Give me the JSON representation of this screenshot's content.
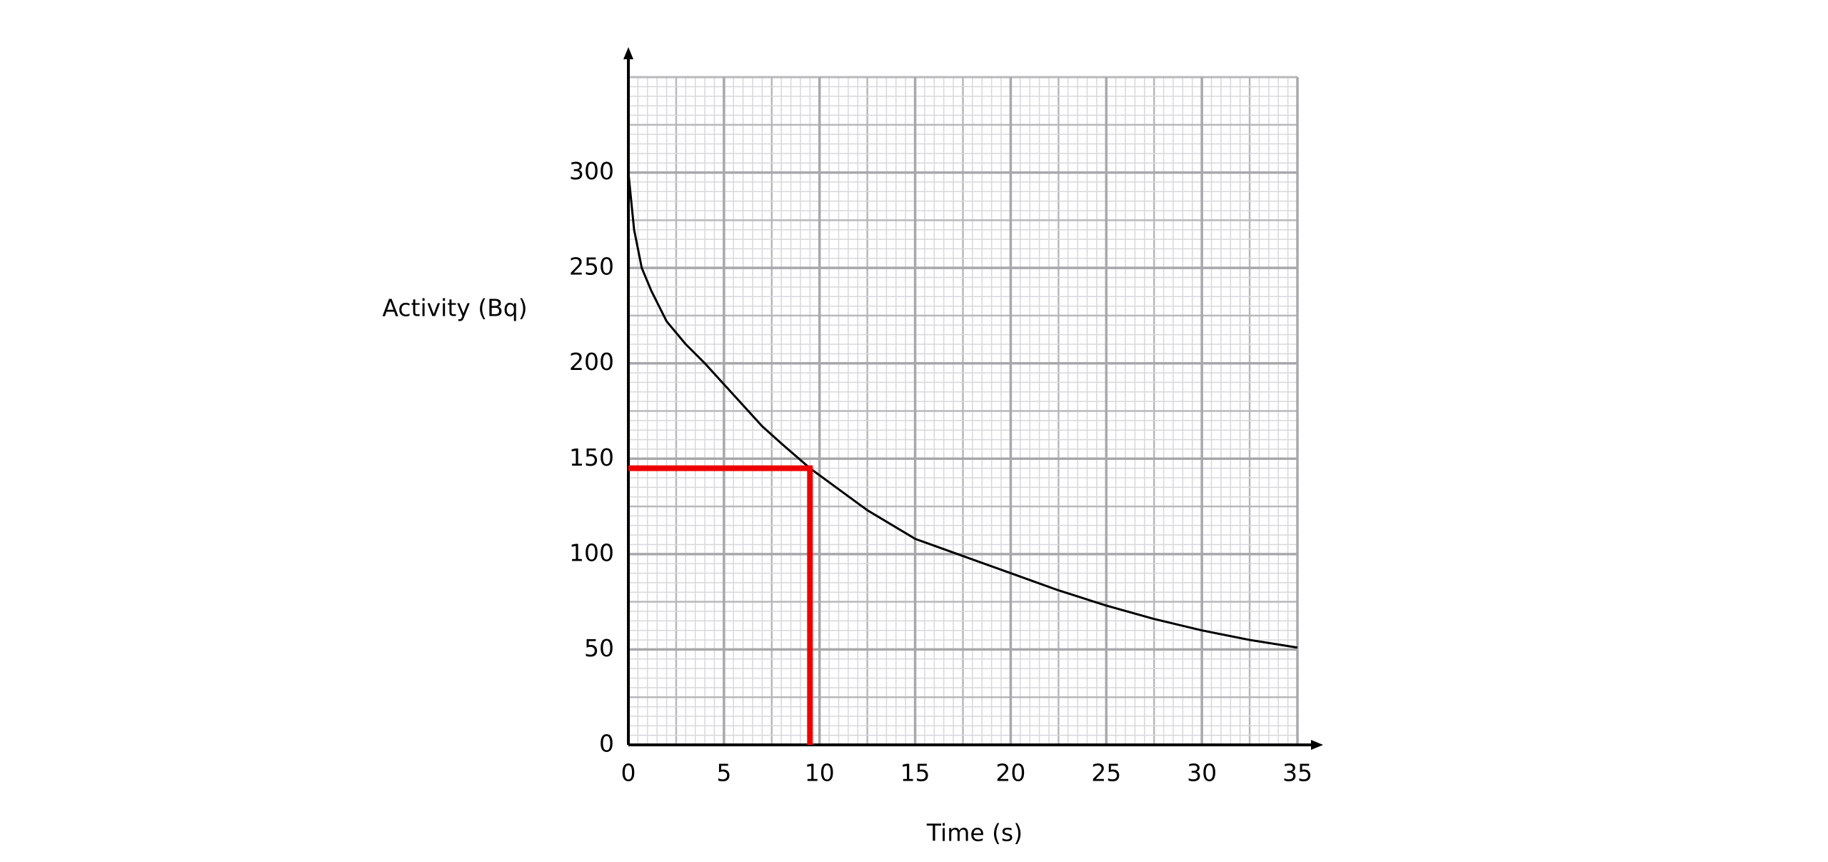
{
  "chart_data": {
    "type": "line",
    "x_label": "Time (s)",
    "y_label": "Activity (Bq)",
    "x": [
      0,
      0.3,
      0.7,
      1.2,
      2,
      3,
      4,
      5,
      6,
      7,
      8,
      9.5,
      11,
      12.5,
      15,
      17.5,
      20,
      22.5,
      25,
      27.5,
      30,
      32.5,
      35
    ],
    "values": [
      300,
      270,
      250,
      238,
      222,
      210,
      200,
      189,
      178,
      167,
      158,
      145,
      134,
      123,
      108,
      99,
      90,
      81,
      73,
      66,
      60,
      55,
      51
    ],
    "color": "#000000",
    "xlim": [
      0,
      35
    ],
    "xticks": [
      0,
      5,
      10,
      15,
      20,
      25,
      30,
      35
    ],
    "ylim": [
      0,
      350
    ],
    "yticks": [
      0,
      50,
      100,
      150,
      200,
      250,
      300
    ],
    "grid": true,
    "reference": {
      "x": 9.5,
      "y": 145,
      "color": "#ee0000"
    }
  }
}
